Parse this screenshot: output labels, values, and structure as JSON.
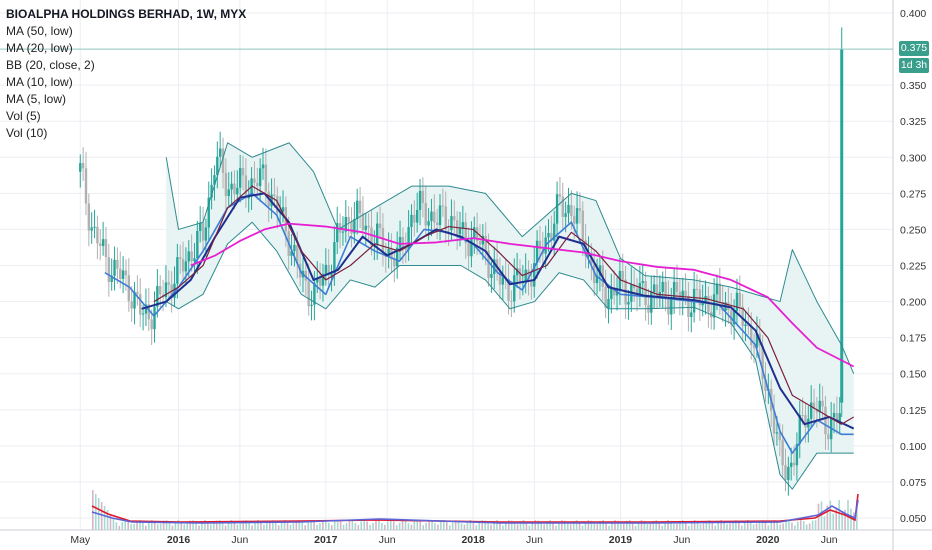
{
  "legend": {
    "title": "BIOALPHA HOLDINGS BERHAD, 1W, MYX",
    "studies": [
      "MA (50, low)",
      "MA (20, low)",
      "BB (20, close, 2)",
      "MA (10, low)",
      "MA (5, low)",
      "Vol (5)",
      "Vol (10)"
    ]
  },
  "last_price": {
    "value": "0.375",
    "countdown": "1d 3h"
  },
  "colors": {
    "up": "#26a69a",
    "down": "#b0b0b0",
    "ma50": "#e61fd2",
    "ma20": "#7a1f3d",
    "ma10": "#1f2f8f",
    "ma5": "#3d7dd4",
    "bb": "#2c8a8f",
    "bb_fill": "#e5f3f3",
    "vol5": "#5b63d6",
    "vol10": "#e0182b",
    "grid": "#eceef2"
  },
  "chart_data": {
    "type": "line",
    "title": "BIOALPHA HOLDINGS BERHAD, 1W, MYX",
    "y_axis_ticks": [
      "0.050",
      "0.075",
      "0.100",
      "0.125",
      "0.150",
      "0.175",
      "0.200",
      "0.225",
      "0.250",
      "0.275",
      "0.300",
      "0.325",
      "0.350",
      "0.375",
      "0.400"
    ],
    "ylim": [
      0.05,
      0.4
    ],
    "x_axis_ticks": [
      "May",
      "2016",
      "Jun",
      "2017",
      "Jun",
      "2018",
      "Jun",
      "2019",
      "Jun",
      "2020",
      "Jun"
    ],
    "x_tick_dates": [
      "2015-05",
      "2016-01",
      "2016-06",
      "2017-01",
      "2017-06",
      "2018-01",
      "2018-06",
      "2019-01",
      "2019-06",
      "2020-01",
      "2020-06"
    ],
    "xlim": [
      "2015-04",
      "2020-09"
    ],
    "grid": true,
    "price_points": [
      [
        "2015-05",
        0.29
      ],
      [
        "2015-06",
        0.25
      ],
      [
        "2015-07",
        0.23
      ],
      [
        "2015-09",
        0.21
      ],
      [
        "2015-10",
        0.19
      ],
      [
        "2015-11",
        0.195
      ],
      [
        "2015-12",
        0.21
      ],
      [
        "2016-01",
        0.22
      ],
      [
        "2016-02",
        0.235
      ],
      [
        "2016-03",
        0.245
      ],
      [
        "2016-04",
        0.3
      ],
      [
        "2016-05",
        0.28
      ],
      [
        "2016-06",
        0.28
      ],
      [
        "2016-08",
        0.285
      ],
      [
        "2016-09",
        0.265
      ],
      [
        "2016-10",
        0.245
      ],
      [
        "2016-11",
        0.215
      ],
      [
        "2016-12",
        0.205
      ],
      [
        "2017-01",
        0.22
      ],
      [
        "2017-02",
        0.245
      ],
      [
        "2017-03",
        0.26
      ],
      [
        "2017-04",
        0.255
      ],
      [
        "2017-05",
        0.245
      ],
      [
        "2017-06",
        0.235
      ],
      [
        "2017-07",
        0.23
      ],
      [
        "2017-08",
        0.26
      ],
      [
        "2017-09",
        0.265
      ],
      [
        "2017-10",
        0.255
      ],
      [
        "2017-11",
        0.26
      ],
      [
        "2017-12",
        0.245
      ],
      [
        "2018-01",
        0.245
      ],
      [
        "2018-02",
        0.235
      ],
      [
        "2018-03",
        0.215
      ],
      [
        "2018-04",
        0.21
      ],
      [
        "2018-05",
        0.215
      ],
      [
        "2018-06",
        0.225
      ],
      [
        "2018-07",
        0.245
      ],
      [
        "2018-08",
        0.265
      ],
      [
        "2018-09",
        0.265
      ],
      [
        "2018-10",
        0.245
      ],
      [
        "2018-11",
        0.215
      ],
      [
        "2018-12",
        0.205
      ],
      [
        "2019-01",
        0.21
      ],
      [
        "2019-03",
        0.205
      ],
      [
        "2019-05",
        0.205
      ],
      [
        "2019-07",
        0.2
      ],
      [
        "2019-09",
        0.2
      ],
      [
        "2019-11",
        0.19
      ],
      [
        "2019-12",
        0.17
      ],
      [
        "2020-01",
        0.14
      ],
      [
        "2020-02",
        0.09
      ],
      [
        "2020-03",
        0.085
      ],
      [
        "2020-04",
        0.125
      ],
      [
        "2020-05",
        0.125
      ],
      [
        "2020-06",
        0.115
      ],
      [
        "2020-07",
        0.12
      ],
      [
        "2020-08",
        0.375
      ]
    ],
    "series": [
      {
        "name": "MA (50, low)",
        "points": [
          [
            "2016-02",
            0.225
          ],
          [
            "2016-04",
            0.232
          ],
          [
            "2016-06",
            0.242
          ],
          [
            "2016-08",
            0.25
          ],
          [
            "2016-10",
            0.254
          ],
          [
            "2017-01",
            0.252
          ],
          [
            "2017-04",
            0.248
          ],
          [
            "2017-07",
            0.24
          ],
          [
            "2017-10",
            0.241
          ],
          [
            "2018-01",
            0.244
          ],
          [
            "2018-04",
            0.24
          ],
          [
            "2018-07",
            0.237
          ],
          [
            "2018-10",
            0.234
          ],
          [
            "2019-01",
            0.228
          ],
          [
            "2019-04",
            0.224
          ],
          [
            "2019-07",
            0.222
          ],
          [
            "2019-10",
            0.215
          ],
          [
            "2020-01",
            0.203
          ],
          [
            "2020-03",
            0.185
          ],
          [
            "2020-05",
            0.168
          ],
          [
            "2020-08",
            0.155
          ]
        ]
      },
      {
        "name": "MA (20, low)",
        "points": [
          [
            "2015-11",
            0.2
          ],
          [
            "2016-01",
            0.21
          ],
          [
            "2016-03",
            0.225
          ],
          [
            "2016-05",
            0.265
          ],
          [
            "2016-07",
            0.28
          ],
          [
            "2016-09",
            0.27
          ],
          [
            "2016-11",
            0.235
          ],
          [
            "2017-01",
            0.215
          ],
          [
            "2017-03",
            0.225
          ],
          [
            "2017-05",
            0.24
          ],
          [
            "2017-07",
            0.235
          ],
          [
            "2017-09",
            0.245
          ],
          [
            "2017-11",
            0.252
          ],
          [
            "2018-01",
            0.25
          ],
          [
            "2018-03",
            0.235
          ],
          [
            "2018-05",
            0.218
          ],
          [
            "2018-07",
            0.225
          ],
          [
            "2018-09",
            0.248
          ],
          [
            "2018-11",
            0.235
          ],
          [
            "2019-01",
            0.215
          ],
          [
            "2019-04",
            0.205
          ],
          [
            "2019-08",
            0.202
          ],
          [
            "2019-11",
            0.195
          ],
          [
            "2020-01",
            0.175
          ],
          [
            "2020-03",
            0.135
          ],
          [
            "2020-05",
            0.125
          ],
          [
            "2020-07",
            0.115
          ],
          [
            "2020-08",
            0.12
          ]
        ]
      },
      {
        "name": "MA (10, low)",
        "points": [
          [
            "2015-10",
            0.195
          ],
          [
            "2015-12",
            0.2
          ],
          [
            "2016-02",
            0.215
          ],
          [
            "2016-04",
            0.245
          ],
          [
            "2016-06",
            0.272
          ],
          [
            "2016-08",
            0.275
          ],
          [
            "2016-10",
            0.255
          ],
          [
            "2016-12",
            0.215
          ],
          [
            "2017-02",
            0.222
          ],
          [
            "2017-04",
            0.245
          ],
          [
            "2017-06",
            0.232
          ],
          [
            "2017-08",
            0.24
          ],
          [
            "2017-10",
            0.25
          ],
          [
            "2017-12",
            0.245
          ],
          [
            "2018-02",
            0.235
          ],
          [
            "2018-04",
            0.212
          ],
          [
            "2018-06",
            0.215
          ],
          [
            "2018-08",
            0.245
          ],
          [
            "2018-10",
            0.24
          ],
          [
            "2018-12",
            0.21
          ],
          [
            "2019-03",
            0.204
          ],
          [
            "2019-07",
            0.201
          ],
          [
            "2019-10",
            0.196
          ],
          [
            "2019-12",
            0.18
          ],
          [
            "2020-02",
            0.14
          ],
          [
            "2020-04",
            0.115
          ],
          [
            "2020-06",
            0.12
          ],
          [
            "2020-08",
            0.112
          ]
        ]
      },
      {
        "name": "MA (5, low)",
        "points": [
          [
            "2015-07",
            0.22
          ],
          [
            "2015-09",
            0.21
          ],
          [
            "2015-11",
            0.19
          ],
          [
            "2016-01",
            0.21
          ],
          [
            "2016-03",
            0.235
          ],
          [
            "2016-05",
            0.265
          ],
          [
            "2016-07",
            0.275
          ],
          [
            "2016-09",
            0.26
          ],
          [
            "2016-11",
            0.22
          ],
          [
            "2017-01",
            0.205
          ],
          [
            "2017-03",
            0.245
          ],
          [
            "2017-05",
            0.235
          ],
          [
            "2017-07",
            0.228
          ],
          [
            "2017-09",
            0.25
          ],
          [
            "2017-11",
            0.248
          ],
          [
            "2018-01",
            0.24
          ],
          [
            "2018-03",
            0.22
          ],
          [
            "2018-05",
            0.208
          ],
          [
            "2018-07",
            0.24
          ],
          [
            "2018-09",
            0.255
          ],
          [
            "2018-11",
            0.218
          ],
          [
            "2019-01",
            0.205
          ],
          [
            "2019-05",
            0.202
          ],
          [
            "2019-09",
            0.198
          ],
          [
            "2019-12",
            0.17
          ],
          [
            "2020-02",
            0.11
          ],
          [
            "2020-03",
            0.095
          ],
          [
            "2020-05",
            0.118
          ],
          [
            "2020-07",
            0.108
          ],
          [
            "2020-08",
            0.108
          ]
        ]
      },
      {
        "name": "BB upper",
        "points": [
          [
            "2015-12",
            0.3
          ],
          [
            "2016-01",
            0.25
          ],
          [
            "2016-03",
            0.255
          ],
          [
            "2016-05",
            0.31
          ],
          [
            "2016-07",
            0.3
          ],
          [
            "2016-10",
            0.31
          ],
          [
            "2016-12",
            0.29
          ],
          [
            "2017-02",
            0.25
          ],
          [
            "2017-05",
            0.265
          ],
          [
            "2017-08",
            0.28
          ],
          [
            "2017-11",
            0.28
          ],
          [
            "2018-02",
            0.275
          ],
          [
            "2018-05",
            0.245
          ],
          [
            "2018-07",
            0.26
          ],
          [
            "2018-09",
            0.275
          ],
          [
            "2018-11",
            0.27
          ],
          [
            "2019-01",
            0.23
          ],
          [
            "2019-03",
            0.218
          ],
          [
            "2019-07",
            0.215
          ],
          [
            "2019-10",
            0.21
          ],
          [
            "2019-12",
            0.205
          ],
          [
            "2020-02",
            0.2
          ],
          [
            "2020-03",
            0.236
          ],
          [
            "2020-05",
            0.2
          ],
          [
            "2020-07",
            0.17
          ],
          [
            "2020-08",
            0.15
          ]
        ]
      },
      {
        "name": "BB lower",
        "points": [
          [
            "2015-12",
            0.2
          ],
          [
            "2016-01",
            0.195
          ],
          [
            "2016-03",
            0.205
          ],
          [
            "2016-05",
            0.24
          ],
          [
            "2016-07",
            0.255
          ],
          [
            "2016-09",
            0.235
          ],
          [
            "2016-11",
            0.205
          ],
          [
            "2017-01",
            0.195
          ],
          [
            "2017-03",
            0.215
          ],
          [
            "2017-05",
            0.21
          ],
          [
            "2017-07",
            0.225
          ],
          [
            "2017-09",
            0.225
          ],
          [
            "2017-12",
            0.225
          ],
          [
            "2018-02",
            0.215
          ],
          [
            "2018-04",
            0.195
          ],
          [
            "2018-06",
            0.2
          ],
          [
            "2018-08",
            0.22
          ],
          [
            "2018-10",
            0.215
          ],
          [
            "2018-12",
            0.195
          ],
          [
            "2019-03",
            0.195
          ],
          [
            "2019-07",
            0.196
          ],
          [
            "2019-10",
            0.185
          ],
          [
            "2019-12",
            0.16
          ],
          [
            "2020-02",
            0.08
          ],
          [
            "2020-03",
            0.07
          ],
          [
            "2020-05",
            0.095
          ],
          [
            "2020-08",
            0.095
          ]
        ]
      }
    ]
  }
}
